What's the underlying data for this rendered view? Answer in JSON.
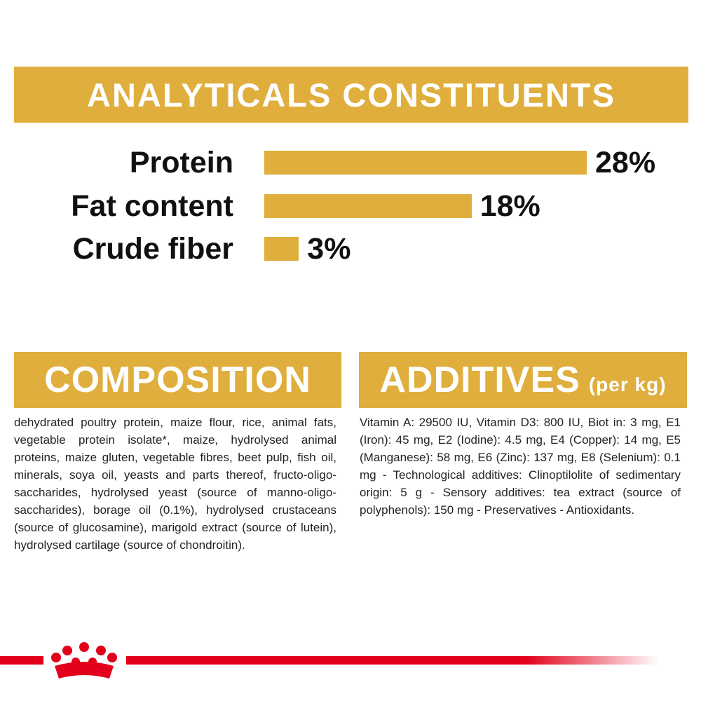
{
  "chart_data": {
    "type": "bar",
    "orientation": "horizontal",
    "title": "ANALYTICALS CONSTITUENTS",
    "categories": [
      "Protein",
      "Fat content",
      "Crude fiber"
    ],
    "values": [
      28,
      18,
      3
    ],
    "value_labels": [
      "28%",
      "18%",
      "3%"
    ],
    "color": "#e0ae3c"
  },
  "composition": {
    "title": "COMPOSITION",
    "text": "dehydrated poultry protein, maize flour, rice, animal fats, vegetable protein isolate*, maize, hydrolysed animal proteins, maize gluten, vegetable fibres, beet pulp, fish oil, minerals, soya oil, yeasts and parts thereof, fructo-oligo-saccharides, hydrolysed yeast (source of manno-oligo- saccharides), borage oil (0.1%), hydrolysed crustaceans (source of glucosamine), marigold extract (source of lutein), hydrolysed cartilage (source of chondroitin)."
  },
  "additives": {
    "title": "ADDITIVES",
    "subtitle": "(per kg)",
    "text": "Vitamin A: 29500 IU, Vitamin D3: 800 IU, Biot in: 3 mg, E1 (Iron): 45 mg, E2 (Iodine): 4.5 mg, E4 (Copper): 14 mg, E5 (Manganese): 58 mg, E6 (Zinc): 137 mg, E8 (Selenium): 0.1 mg - Technological additives: Clinoptilolite of sedimentary origin: 5 g - Sensory additives: tea extract (source of polyphenols): 150 mg - Preservatives - Antioxidants."
  }
}
